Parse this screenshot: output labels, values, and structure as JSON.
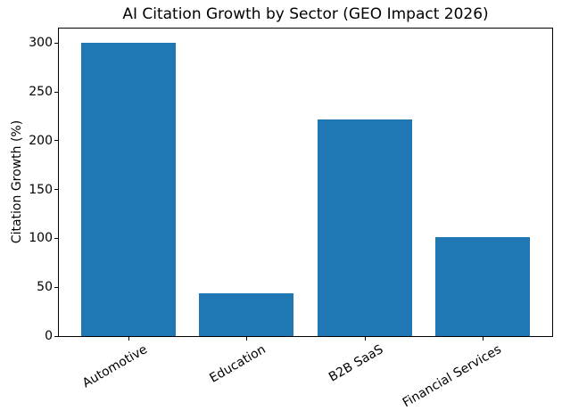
{
  "chart_data": {
    "type": "bar",
    "title": "AI Citation Growth by Sector (GEO Impact 2026)",
    "ylabel": "Citation Growth (%)",
    "xlabel": "",
    "categories": [
      "Automotive",
      "Education",
      "B2B SaaS",
      "Financial Services"
    ],
    "values": [
      300,
      44,
      222,
      101
    ],
    "ylim": [
      0,
      315
    ],
    "yticks": [
      0,
      50,
      100,
      150,
      200,
      250,
      300
    ],
    "bar_color": "#1f77b4",
    "grid": false,
    "legend_position": "none",
    "xtick_rotation_deg": 30
  }
}
